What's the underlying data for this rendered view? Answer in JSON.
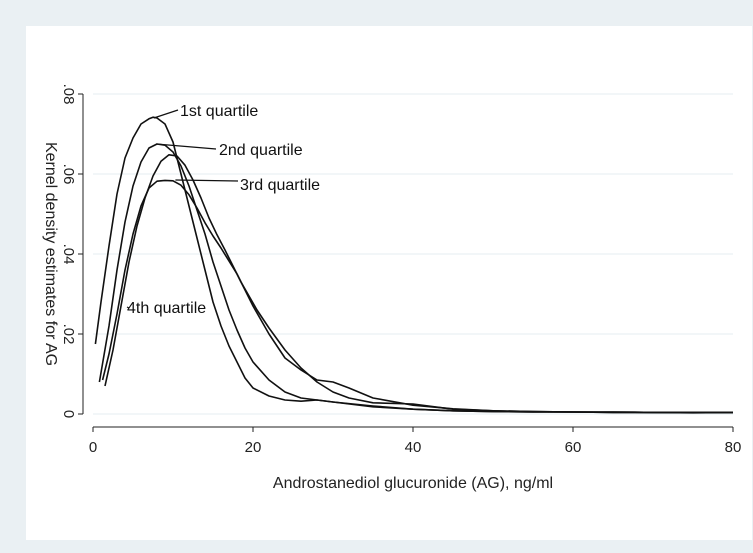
{
  "chart_data": {
    "type": "line",
    "xlabel": "Androstanediol glucuronide (AG), ng/ml",
    "ylabel": "Kernel density estimates for AG",
    "xlim": [
      0,
      80
    ],
    "ylim": [
      0,
      0.08
    ],
    "xticks": [
      {
        "value": 0,
        "label": "0"
      },
      {
        "value": 20,
        "label": "20"
      },
      {
        "value": 40,
        "label": "40"
      },
      {
        "value": 60,
        "label": "60"
      },
      {
        "value": 80,
        "label": "80"
      }
    ],
    "yticks": [
      {
        "value": 0,
        "label": "0"
      },
      {
        "value": 0.02,
        "label": ".02"
      },
      {
        "value": 0.04,
        "label": ".04"
      },
      {
        "value": 0.06,
        "label": ".06"
      },
      {
        "value": 0.08,
        "label": ".08"
      }
    ],
    "grid": true,
    "series": [
      {
        "name": "1st quartile",
        "label_anchor": [
          7.6,
          0.074
        ],
        "x": [
          0.3,
          1,
          2,
          3,
          4,
          5,
          6,
          7,
          7.5,
          8,
          9,
          10,
          11,
          12,
          13,
          14,
          15,
          16,
          17,
          18,
          19,
          20,
          22,
          24,
          26,
          28,
          30,
          35,
          40,
          45,
          50,
          55,
          60,
          65,
          70,
          75,
          80
        ],
        "y": [
          0.0175,
          0.028,
          0.042,
          0.055,
          0.064,
          0.069,
          0.0725,
          0.0738,
          0.0742,
          0.074,
          0.0725,
          0.068,
          0.06,
          0.052,
          0.044,
          0.036,
          0.028,
          0.022,
          0.017,
          0.013,
          0.009,
          0.0065,
          0.0045,
          0.0035,
          0.0032,
          0.0035,
          0.003,
          0.002,
          0.0012,
          0.0008,
          0.0006,
          0.0005,
          0.0005,
          0.0004,
          0.0004,
          0.0003,
          0.0004
        ]
      },
      {
        "name": "2nd quartile",
        "label_anchor": [
          7.9,
          0.0675
        ],
        "x": [
          0.8,
          2,
          3,
          4,
          5,
          6,
          7,
          8,
          9,
          10,
          11,
          12,
          13,
          14,
          15,
          16,
          17,
          18,
          19,
          20,
          22,
          24,
          26,
          28,
          30,
          35,
          40,
          45,
          50,
          55,
          60,
          65,
          70,
          75,
          80
        ],
        "y": [
          0.008,
          0.022,
          0.036,
          0.048,
          0.057,
          0.063,
          0.0665,
          0.0675,
          0.0672,
          0.0655,
          0.062,
          0.057,
          0.051,
          0.045,
          0.038,
          0.032,
          0.026,
          0.021,
          0.0165,
          0.013,
          0.0085,
          0.0055,
          0.004,
          0.0035,
          0.003,
          0.0018,
          0.0012,
          0.0008,
          0.0006,
          0.0005,
          0.0005,
          0.0004,
          0.0004,
          0.0004,
          0.0004
        ]
      },
      {
        "name": "3rd quartile",
        "label_anchor": [
          10.3,
          0.0585
        ],
        "x": [
          1.2,
          2,
          3,
          4,
          5,
          6,
          7,
          8,
          9,
          10,
          11,
          12,
          13,
          14,
          15,
          16,
          18,
          20,
          22,
          24,
          26,
          28,
          30,
          32,
          35,
          40,
          45,
          50,
          55,
          60,
          65,
          70,
          75,
          80
        ],
        "y": [
          0.0085,
          0.015,
          0.025,
          0.036,
          0.045,
          0.052,
          0.0565,
          0.0582,
          0.0584,
          0.0583,
          0.0572,
          0.0548,
          0.0515,
          0.0478,
          0.0445,
          0.0415,
          0.035,
          0.027,
          0.02,
          0.014,
          0.011,
          0.0085,
          0.008,
          0.0065,
          0.004,
          0.0022,
          0.0013,
          0.0008,
          0.0006,
          0.0005,
          0.0005,
          0.0004,
          0.0004,
          0.0004
        ]
      },
      {
        "name": "4th quartile",
        "label_anchor": [
          4.5,
          0.0265
        ],
        "x": [
          1.5,
          2.5,
          3.5,
          4.5,
          5.5,
          6.5,
          7.5,
          8.5,
          9.5,
          10.5,
          11.5,
          12.5,
          13.5,
          14.5,
          15.5,
          16.5,
          17.5,
          18.5,
          19.5,
          20.5,
          22,
          24,
          26,
          28,
          30,
          32,
          35,
          40,
          45,
          50,
          55,
          60,
          65,
          70,
          75,
          80
        ],
        "y": [
          0.007,
          0.016,
          0.027,
          0.038,
          0.047,
          0.054,
          0.0595,
          0.0632,
          0.0648,
          0.0645,
          0.0622,
          0.0585,
          0.054,
          0.049,
          0.0448,
          0.041,
          0.037,
          0.033,
          0.0295,
          0.026,
          0.0215,
          0.016,
          0.0115,
          0.008,
          0.0055,
          0.004,
          0.0028,
          0.0025,
          0.0012,
          0.0008,
          0.0006,
          0.0005,
          0.0005,
          0.0004,
          0.0004,
          0.0004
        ]
      }
    ]
  }
}
